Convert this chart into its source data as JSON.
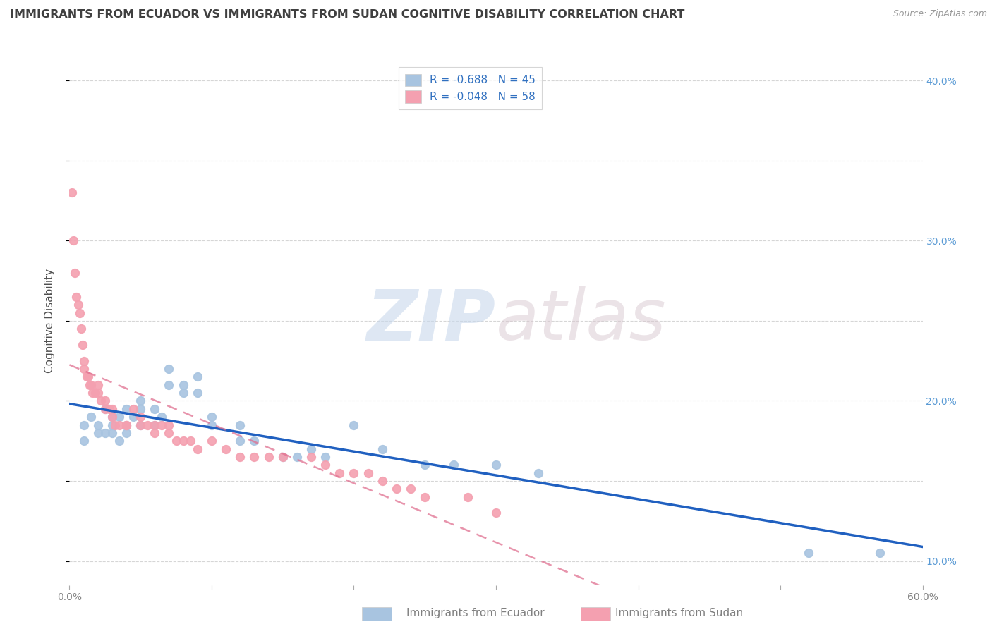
{
  "title": "IMMIGRANTS FROM ECUADOR VS IMMIGRANTS FROM SUDAN COGNITIVE DISABILITY CORRELATION CHART",
  "source": "Source: ZipAtlas.com",
  "ylabel": "Cognitive Disability",
  "legend_labels": [
    "Immigrants from Ecuador",
    "Immigrants from Sudan"
  ],
  "legend_R": [
    -0.688,
    -0.048
  ],
  "legend_N": [
    45,
    58
  ],
  "ecuador_color": "#a8c4e0",
  "sudan_color": "#f4a0b0",
  "ecuador_line_color": "#2060c0",
  "sudan_line_color": "#e07090",
  "xlim": [
    0.0,
    0.6
  ],
  "ylim": [
    0.085,
    0.415
  ],
  "background_color": "#ffffff",
  "grid_color": "#cccccc",
  "title_color": "#404040",
  "axis_label_color": "#505050",
  "watermark_zip": "ZIP",
  "watermark_atlas": "atlas",
  "ecuador_x": [
    0.01,
    0.01,
    0.015,
    0.02,
    0.02,
    0.025,
    0.025,
    0.03,
    0.03,
    0.03,
    0.035,
    0.035,
    0.04,
    0.04,
    0.04,
    0.045,
    0.05,
    0.05,
    0.05,
    0.06,
    0.06,
    0.065,
    0.07,
    0.07,
    0.08,
    0.08,
    0.09,
    0.09,
    0.1,
    0.1,
    0.12,
    0.12,
    0.13,
    0.15,
    0.16,
    0.17,
    0.18,
    0.2,
    0.22,
    0.25,
    0.27,
    0.3,
    0.33,
    0.52,
    0.57
  ],
  "ecuador_y": [
    0.185,
    0.175,
    0.19,
    0.18,
    0.185,
    0.18,
    0.195,
    0.19,
    0.18,
    0.185,
    0.19,
    0.175,
    0.195,
    0.18,
    0.185,
    0.19,
    0.2,
    0.185,
    0.195,
    0.195,
    0.185,
    0.19,
    0.22,
    0.21,
    0.205,
    0.21,
    0.215,
    0.205,
    0.19,
    0.185,
    0.185,
    0.175,
    0.175,
    0.165,
    0.165,
    0.17,
    0.165,
    0.185,
    0.17,
    0.16,
    0.16,
    0.16,
    0.155,
    0.105,
    0.105
  ],
  "sudan_x": [
    0.002,
    0.003,
    0.004,
    0.005,
    0.006,
    0.007,
    0.008,
    0.009,
    0.01,
    0.01,
    0.012,
    0.013,
    0.014,
    0.015,
    0.016,
    0.018,
    0.02,
    0.02,
    0.022,
    0.025,
    0.025,
    0.028,
    0.03,
    0.03,
    0.032,
    0.035,
    0.04,
    0.04,
    0.045,
    0.05,
    0.05,
    0.055,
    0.06,
    0.06,
    0.065,
    0.07,
    0.07,
    0.075,
    0.08,
    0.085,
    0.09,
    0.1,
    0.11,
    0.12,
    0.13,
    0.14,
    0.15,
    0.17,
    0.18,
    0.19,
    0.2,
    0.21,
    0.22,
    0.23,
    0.24,
    0.25,
    0.28,
    0.3
  ],
  "sudan_y": [
    0.33,
    0.3,
    0.28,
    0.265,
    0.26,
    0.255,
    0.245,
    0.235,
    0.225,
    0.22,
    0.215,
    0.215,
    0.21,
    0.21,
    0.205,
    0.205,
    0.21,
    0.205,
    0.2,
    0.2,
    0.195,
    0.195,
    0.195,
    0.19,
    0.185,
    0.185,
    0.185,
    0.185,
    0.195,
    0.19,
    0.185,
    0.185,
    0.185,
    0.18,
    0.185,
    0.185,
    0.18,
    0.175,
    0.175,
    0.175,
    0.17,
    0.175,
    0.17,
    0.165,
    0.165,
    0.165,
    0.165,
    0.165,
    0.16,
    0.155,
    0.155,
    0.155,
    0.15,
    0.145,
    0.145,
    0.14,
    0.14,
    0.13
  ]
}
